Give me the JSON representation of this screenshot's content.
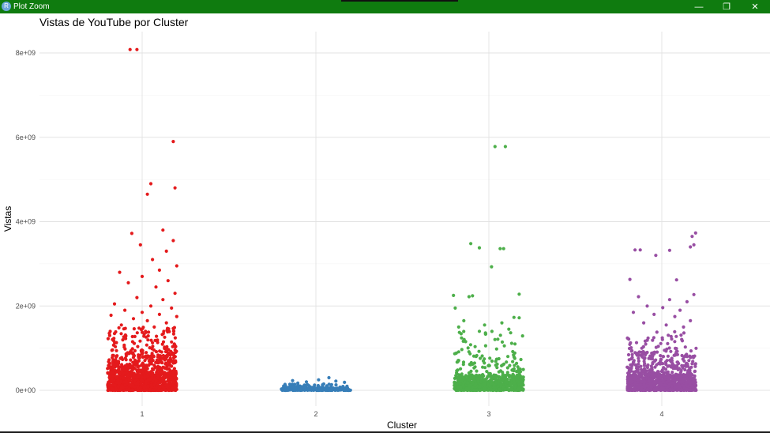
{
  "window": {
    "title": "Plot Zoom",
    "icon": "r-logo-icon",
    "icon_glyph": "R",
    "titlebar_color": "#0f7b0f",
    "controls": [
      {
        "name": "minimize-button",
        "glyph": "—"
      },
      {
        "name": "restore-button",
        "glyph": "❐"
      },
      {
        "name": "close-button",
        "glyph": "✕"
      }
    ]
  },
  "chart_data": {
    "type": "scatter",
    "title": "Vistas de YouTube por Cluster",
    "xlabel": "Cluster",
    "ylabel": "Vistas",
    "categories": [
      "1",
      "2",
      "3",
      "4"
    ],
    "ylim": [
      -400000000,
      8500000000
    ],
    "yticks": [
      0,
      2000000000,
      4000000000,
      6000000000,
      8000000000
    ],
    "ytick_labels": [
      "0e+00",
      "2e+09",
      "4e+09",
      "6e+09",
      "8e+09"
    ],
    "grid": true,
    "legend": "none",
    "jitter_width": 0.2,
    "series": [
      {
        "cluster": "1",
        "color": "#e41a1c",
        "points": [
          [
            0.93,
            8080000000.0
          ],
          [
            0.97,
            8080000000.0
          ],
          [
            1.18,
            5900000000.0
          ],
          [
            1.05,
            4900000000.0
          ],
          [
            1.19,
            4800000000.0
          ],
          [
            1.03,
            4650000000.0
          ],
          [
            0.94,
            3720000000.0
          ],
          [
            1.12,
            3800000000.0
          ],
          [
            1.18,
            3550000000.0
          ],
          [
            0.99,
            3450000000.0
          ],
          [
            1.14,
            3300000000.0
          ],
          [
            1.06,
            3100000000.0
          ],
          [
            1.2,
            2950000000.0
          ],
          [
            1.1,
            2850000000.0
          ],
          [
            0.87,
            2800000000.0
          ],
          [
            1.0,
            2700000000.0
          ],
          [
            1.15,
            2600000000.0
          ],
          [
            0.92,
            2550000000.0
          ],
          [
            1.08,
            2450000000.0
          ],
          [
            1.19,
            2300000000.0
          ],
          [
            0.97,
            2200000000.0
          ],
          [
            1.12,
            2150000000.0
          ],
          [
            0.84,
            2050000000.0
          ],
          [
            1.05,
            2000000000.0
          ],
          [
            1.17,
            1950000000.0
          ],
          [
            0.9,
            1900000000.0
          ],
          [
            1.0,
            1850000000.0
          ],
          [
            1.1,
            1800000000.0
          ],
          [
            0.82,
            1780000000.0
          ],
          [
            1.2,
            1750000000.0
          ],
          [
            0.95,
            1700000000.0
          ],
          [
            1.03,
            1650000000.0
          ],
          [
            1.14,
            1600000000.0
          ],
          [
            0.88,
            1550000000.0
          ],
          [
            1.07,
            1500000000.0
          ]
        ]
      },
      {
        "cluster": "2",
        "color": "#377eb8",
        "points": [
          [
            2.08,
            300000000.0
          ],
          [
            1.87,
            230000000.0
          ],
          [
            2.02,
            250000000.0
          ],
          [
            2.12,
            220000000.0
          ],
          [
            1.95,
            200000000.0
          ],
          [
            2.17,
            190000000.0
          ],
          [
            1.9,
            170000000.0
          ],
          [
            2.05,
            150000000.0
          ]
        ]
      },
      {
        "cluster": "3",
        "color": "#4daf4a",
        "points": [
          [
            3.04,
            5780000000.0
          ],
          [
            3.1,
            5780000000.0
          ],
          [
            2.9,
            3480000000.0
          ],
          [
            2.95,
            3380000000.0
          ],
          [
            3.07,
            3360000000.0
          ],
          [
            3.09,
            3360000000.0
          ],
          [
            3.02,
            2930000000.0
          ],
          [
            2.8,
            2250000000.0
          ],
          [
            2.89,
            2220000000.0
          ],
          [
            2.91,
            2240000000.0
          ],
          [
            3.18,
            2280000000.0
          ],
          [
            2.81,
            1950000000.0
          ],
          [
            3.15,
            1730000000.0
          ],
          [
            3.18,
            1720000000.0
          ],
          [
            2.86,
            1650000000.0
          ],
          [
            3.08,
            1600000000.0
          ],
          [
            2.98,
            1550000000.0
          ],
          [
            2.83,
            1500000000.0
          ],
          [
            3.12,
            1450000000.0
          ],
          [
            2.95,
            1400000000.0
          ]
        ]
      },
      {
        "cluster": "4",
        "color": "#984ea3",
        "points": [
          [
            4.2,
            3730000000.0
          ],
          [
            4.18,
            3650000000.0
          ],
          [
            4.19,
            3450000000.0
          ],
          [
            4.17,
            3400000000.0
          ],
          [
            3.85,
            3330000000.0
          ],
          [
            3.88,
            3330000000.0
          ],
          [
            4.05,
            3320000000.0
          ],
          [
            3.97,
            3200000000.0
          ],
          [
            3.82,
            2630000000.0
          ],
          [
            4.09,
            2620000000.0
          ],
          [
            4.19,
            2270000000.0
          ],
          [
            3.87,
            2220000000.0
          ],
          [
            4.05,
            2150000000.0
          ],
          [
            4.15,
            2100000000.0
          ],
          [
            3.92,
            2000000000.0
          ],
          [
            4.01,
            1960000000.0
          ],
          [
            4.11,
            1900000000.0
          ],
          [
            3.84,
            1850000000.0
          ],
          [
            3.96,
            1800000000.0
          ],
          [
            4.08,
            1750000000.0
          ],
          [
            4.17,
            1650000000.0
          ],
          [
            3.9,
            1600000000.0
          ],
          [
            4.03,
            1550000000.0
          ],
          [
            4.13,
            1500000000.0
          ]
        ]
      }
    ],
    "dense_bands": [
      {
        "cluster": "1",
        "color": "#e41a1c",
        "density": [
          [
            0,
            400000000,
            900
          ],
          [
            400000000,
            800000000,
            260
          ],
          [
            800000000,
            1500000000,
            150
          ]
        ]
      },
      {
        "cluster": "2",
        "color": "#377eb8",
        "density": [
          [
            0,
            60000000,
            260
          ],
          [
            60000000,
            150000000,
            45
          ]
        ]
      },
      {
        "cluster": "3",
        "color": "#4daf4a",
        "density": [
          [
            0,
            350000000,
            650
          ],
          [
            350000000,
            800000000,
            90
          ],
          [
            800000000,
            1400000000,
            40
          ]
        ]
      },
      {
        "cluster": "4",
        "color": "#984ea3",
        "density": [
          [
            0,
            350000000,
            750
          ],
          [
            350000000,
            800000000,
            220
          ],
          [
            800000000,
            1400000000,
            90
          ]
        ]
      }
    ]
  }
}
